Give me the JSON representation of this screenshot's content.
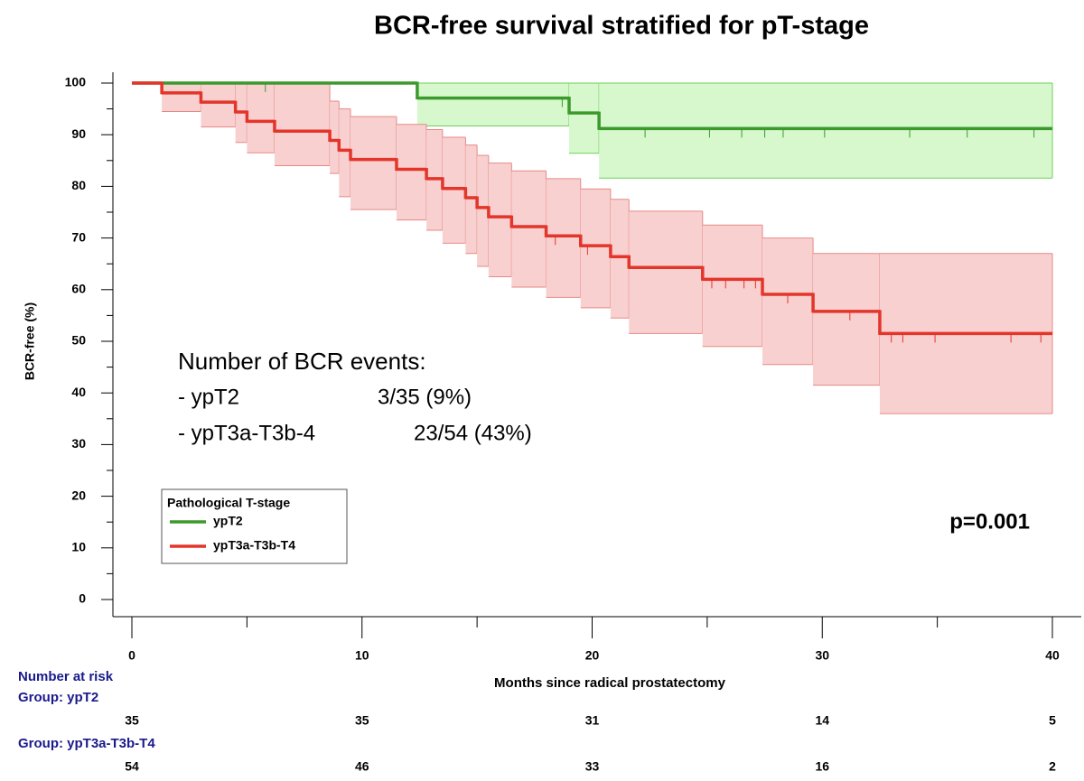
{
  "chart_data": {
    "type": "kaplan-meier",
    "title": "BCR-free survival stratified for pT-stage",
    "x_label": "Months since radical prostatectomy",
    "y_label": "BCR-free (%)",
    "xlim": [
      0,
      40
    ],
    "ylim": [
      0,
      100
    ],
    "xticks": [
      0,
      10,
      20,
      30,
      40
    ],
    "yticks": [
      0,
      10,
      20,
      30,
      40,
      50,
      60,
      70,
      80,
      90,
      100
    ],
    "x_minor_ticks": [
      5,
      15,
      25,
      35
    ],
    "y_minor_ticks": [
      5,
      15,
      25,
      35,
      45,
      55,
      65,
      75,
      85,
      95
    ],
    "legend_title": "Pathological T-stage",
    "legend_position": "lower left",
    "series": [
      {
        "name": "ypT2",
        "color": "#3c9a2c",
        "band_color": "#d6f8cc",
        "band_edge": "#6fcf5c",
        "x": [
          0,
          12.4,
          19,
          20.3
        ],
        "values": [
          100,
          97.1,
          94.2,
          91.2
        ],
        "lower": [
          100,
          91.7,
          86.4,
          81.6
        ],
        "upper": [
          100,
          100,
          100,
          100
        ],
        "censored": [
          5.8,
          18.7,
          22.3,
          25.1,
          26.5,
          27.5,
          28.3,
          30.1,
          33.8,
          36.3,
          39.2
        ]
      },
      {
        "name": "ypT3a-T3b-T4",
        "color": "#e3352a",
        "band_color": "#f8d0d0",
        "band_edge": "#e58a86",
        "x": [
          0,
          1.3,
          3,
          4.5,
          5,
          6.2,
          8.6,
          9,
          9.5,
          11.5,
          12.8,
          13.5,
          14.5,
          15,
          15.5,
          16.5,
          18,
          19.5,
          20.8,
          21.6,
          24.8,
          27.4,
          29.6,
          32.5
        ],
        "values": [
          100,
          98.1,
          96.3,
          94.4,
          92.6,
          90.7,
          88.9,
          87,
          85.2,
          83.3,
          81.5,
          79.6,
          77.8,
          75.9,
          74.1,
          72.2,
          70.4,
          68.5,
          66.4,
          64.3,
          62,
          59.1,
          55.8,
          51.5
        ],
        "lower": [
          100,
          94.5,
          91.5,
          88.5,
          86.5,
          84,
          82.5,
          78,
          75.5,
          73.5,
          71.5,
          69,
          67,
          64.5,
          62.5,
          60.5,
          58.5,
          56.5,
          54.5,
          51.5,
          49,
          45.5,
          41.5,
          36
        ],
        "upper": [
          100,
          100,
          100,
          100,
          100,
          100,
          96.5,
          95,
          93.5,
          92,
          91,
          89.5,
          88,
          86,
          84.5,
          83,
          81.5,
          79.5,
          77.5,
          75.2,
          72.5,
          70,
          67,
          67
        ],
        "censored": [
          18.4,
          19.8,
          25.2,
          25.8,
          26.6,
          27.1,
          28.5,
          31.2,
          33,
          33.5,
          34.9,
          38.2,
          39.5
        ]
      }
    ],
    "annotation": {
      "title": "Number of BCR events:",
      "rows": [
        [
          "-  ypT2",
          "3/35 (9%)"
        ],
        [
          "-  ypT3a-T3b-4",
          "23/54 (43%)"
        ]
      ]
    },
    "p_value": "p=0.001",
    "risk_table": {
      "title": "Number at risk",
      "groups": [
        {
          "label": "Group: ypT2",
          "counts": [
            35,
            35,
            31,
            14,
            5
          ]
        },
        {
          "label": "Group: ypT3a-T3b-T4",
          "counts": [
            54,
            46,
            33,
            16,
            2
          ]
        }
      ]
    }
  }
}
